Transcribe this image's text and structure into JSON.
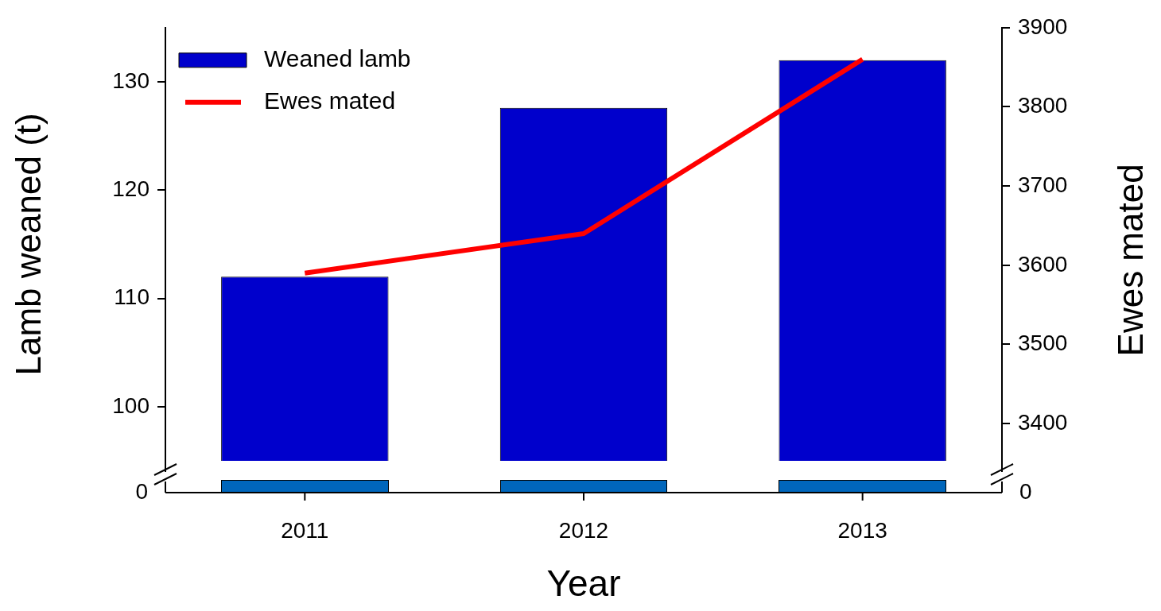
{
  "chart_data": {
    "type": "bar",
    "categories": [
      "2011",
      "2012",
      "2013"
    ],
    "xlabel": "Year",
    "ylabel": "Lamb weaned (t)",
    "y2label": "Ewes mated",
    "ylim": [
      95,
      135
    ],
    "yticks": [
      100,
      110,
      120,
      130
    ],
    "y2lim": [
      3353,
      3900
    ],
    "y2ticks": [
      3400,
      3500,
      3600,
      3700,
      3800,
      3900
    ],
    "legend": "top left",
    "grid": false,
    "marker": "none",
    "annotations": [
      "0",
      "0"
    ],
    "series": [
      {
        "name": "Weaned lamb",
        "color": "#0000cc",
        "values": [
          112,
          127.6,
          132
        ]
      },
      {
        "name": "Ewes mated",
        "type": "line",
        "axis": "y2",
        "color": "#ff0000",
        "values": [
          3590,
          3640,
          3860
        ]
      }
    ]
  }
}
